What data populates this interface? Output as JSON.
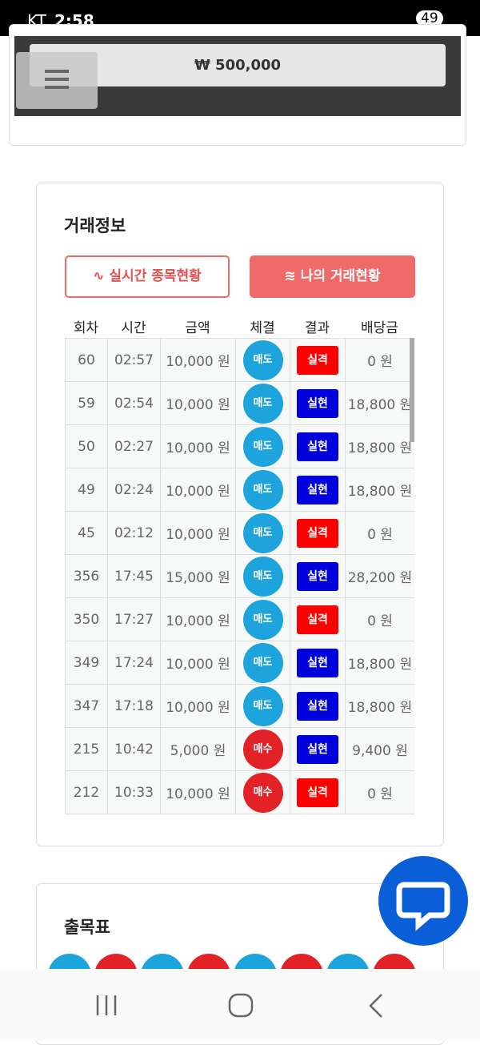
{
  "status_bar": {
    "carrier": "KT",
    "time": "2:58",
    "battery": "49"
  },
  "balance": "₩ 500,000",
  "trade_info": {
    "title": "거래정보",
    "buttons": [
      "실시간 종목현황",
      "나의 거래현황"
    ],
    "headers": [
      "회차",
      "시간",
      "금액",
      "체결",
      "결과",
      "배당금"
    ],
    "badge_colors": {
      "매도": "#1ea4dc",
      "매수": "#e32228",
      "실격": "#ff0000",
      "실현": "#0000dd"
    },
    "rows": [
      [
        "60",
        "02:57",
        "10,000 원",
        "매도",
        "실격",
        "0 원"
      ],
      [
        "59",
        "02:54",
        "10,000 원",
        "매도",
        "실현",
        "18,800 원"
      ],
      [
        "50",
        "02:27",
        "10,000 원",
        "매도",
        "실현",
        "18,800 원"
      ],
      [
        "49",
        "02:24",
        "10,000 원",
        "매도",
        "실현",
        "18,800 원"
      ],
      [
        "45",
        "02:12",
        "10,000 원",
        "매도",
        "실격",
        "0 원"
      ],
      [
        "356",
        "17:45",
        "15,000 원",
        "매도",
        "실현",
        "28,200 원"
      ],
      [
        "350",
        "17:27",
        "10,000 원",
        "매도",
        "실격",
        "0 원"
      ],
      [
        "349",
        "17:24",
        "10,000 원",
        "매도",
        "실현",
        "18,800 원"
      ],
      [
        "347",
        "17:18",
        "10,000 원",
        "매도",
        "실현",
        "18,800 원"
      ],
      [
        "215",
        "10:42",
        "5,000 원",
        "매수",
        "실현",
        "9,400 원"
      ],
      [
        "212",
        "10:33",
        "10,000 원",
        "매수",
        "실격",
        "0 원"
      ]
    ]
  },
  "results": {
    "title": "출목표"
  }
}
